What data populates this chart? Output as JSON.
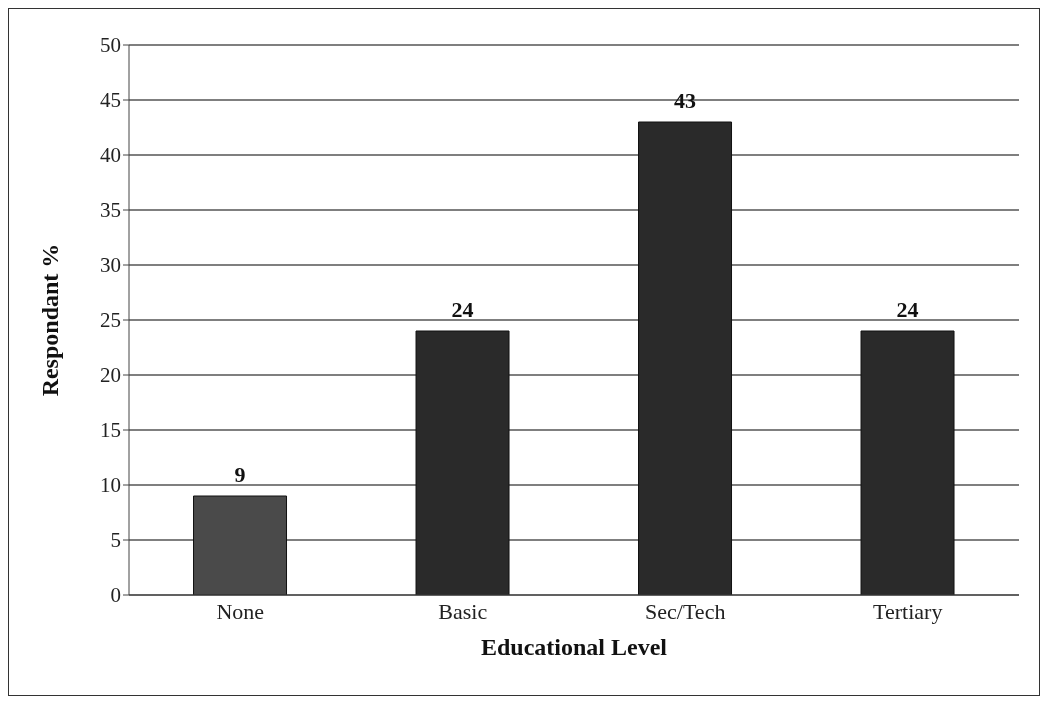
{
  "chart_data": {
    "type": "bar",
    "xlabel": "Educational Level",
    "ylabel": "Respondant %",
    "categories": [
      "None",
      "Basic",
      "Sec/Tech",
      "Tertiary"
    ],
    "values": [
      9,
      24,
      43,
      24
    ],
    "colors": [
      "#4a4a4a",
      "#2a2a2a",
      "#2a2a2a",
      "#2a2a2a"
    ],
    "ylim": [
      0,
      50
    ],
    "yticks": [
      0,
      5,
      10,
      15,
      20,
      25,
      30,
      35,
      40,
      45,
      50
    ],
    "grid": "y",
    "data_labels": true
  }
}
